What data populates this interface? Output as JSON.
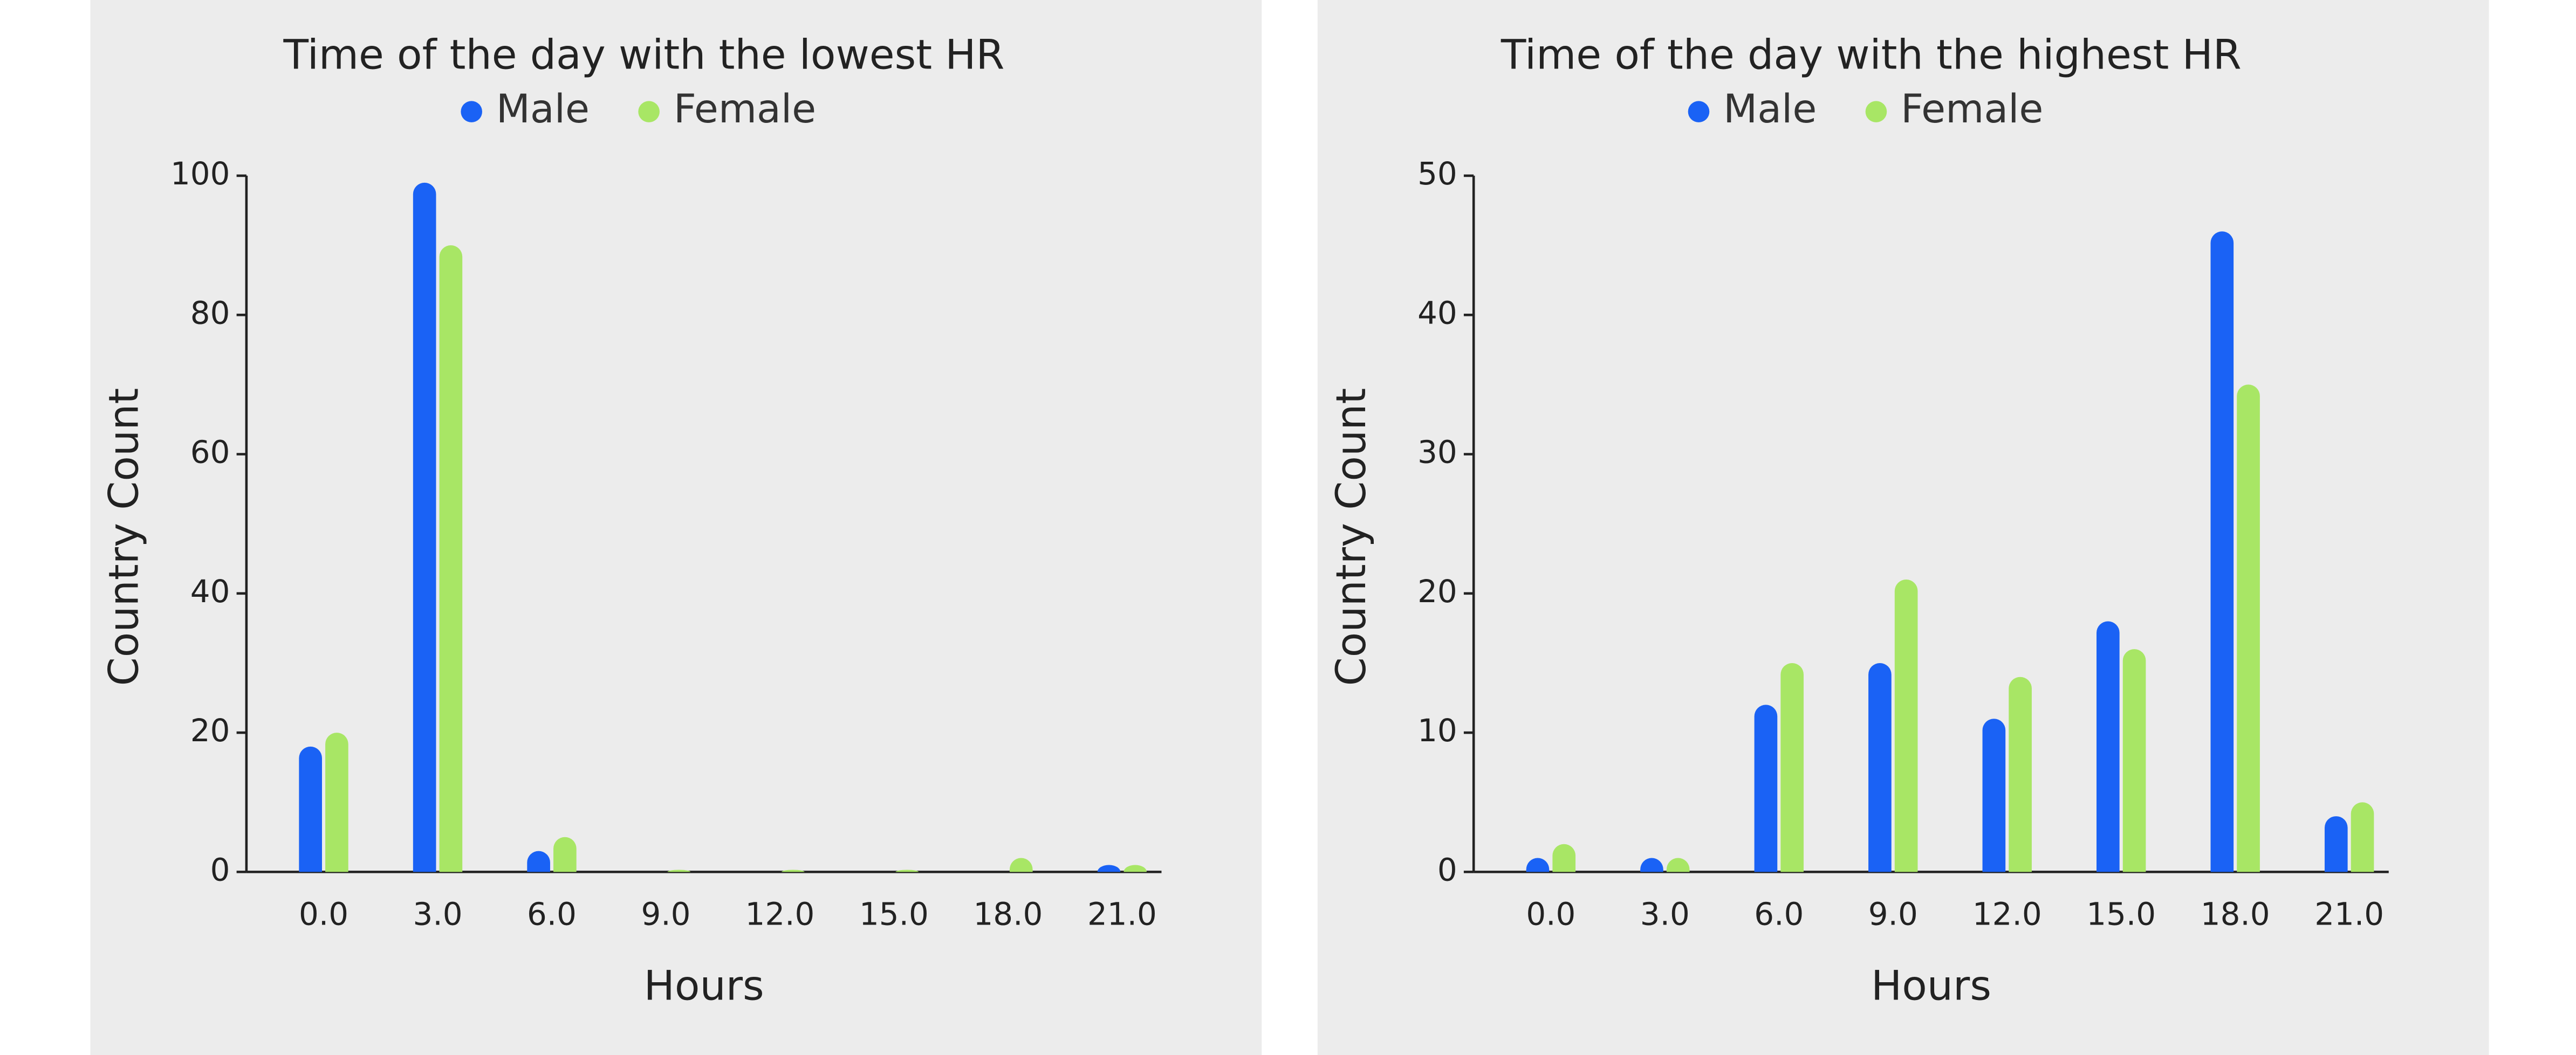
{
  "chart_data": [
    {
      "type": "bar",
      "title": "Time of the day with the lowest HR",
      "xlabel": "Hours",
      "ylabel": "Country Count",
      "categories": [
        "0.0",
        "3.0",
        "6.0",
        "9.0",
        "12.0",
        "15.0",
        "18.0",
        "21.0"
      ],
      "series": [
        {
          "name": "Male",
          "color": "#1a62f5",
          "values": [
            18,
            99,
            3,
            0,
            0,
            0,
            0,
            1
          ]
        },
        {
          "name": "Female",
          "color": "#a8e665",
          "values": [
            20,
            90,
            5,
            0.3,
            0.3,
            0.3,
            2,
            1
          ]
        }
      ],
      "ylim": [
        0,
        100
      ],
      "yticks": [
        0,
        20,
        40,
        60,
        80,
        100
      ],
      "grid": false,
      "legend": "top"
    },
    {
      "type": "bar",
      "title": "Time of the day with the highest HR",
      "xlabel": "Hours",
      "ylabel": "Country Count",
      "categories": [
        "0.0",
        "3.0",
        "6.0",
        "9.0",
        "12.0",
        "15.0",
        "18.0",
        "21.0"
      ],
      "series": [
        {
          "name": "Male",
          "color": "#1a62f5",
          "values": [
            1,
            1,
            12,
            15,
            11,
            18,
            46,
            4
          ]
        },
        {
          "name": "Female",
          "color": "#a8e665",
          "values": [
            2,
            1,
            15,
            21,
            14,
            16,
            35,
            5
          ]
        }
      ],
      "ylim": [
        0,
        50
      ],
      "yticks": [
        0,
        10,
        20,
        30,
        40,
        50
      ],
      "grid": false,
      "legend": "top"
    }
  ]
}
